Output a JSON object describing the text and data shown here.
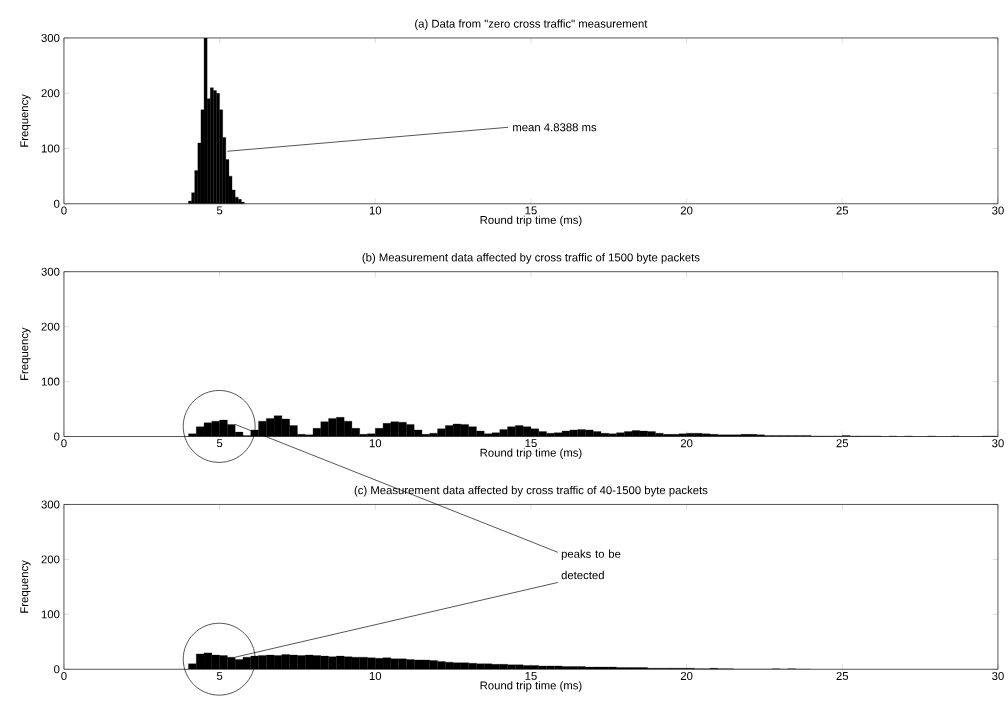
{
  "chart_data": [
    {
      "type": "histogram",
      "title": "(a)   Data from \"zero cross traffic\" measurement",
      "xlabel": "Round trip time (ms)",
      "ylabel": "Frequency",
      "color": "#000000",
      "bins": [
        4.0,
        4.1,
        4.2,
        4.3,
        4.4,
        4.5,
        4.6,
        4.7,
        4.8,
        4.9,
        5.0,
        5.1,
        5.2,
        5.3,
        5.4,
        5.5,
        5.6,
        5.7,
        5.8
      ],
      "values": [
        5,
        20,
        60,
        110,
        170,
        300,
        190,
        210,
        205,
        200,
        170,
        120,
        80,
        50,
        25,
        12,
        8,
        3
      ],
      "xlim": [
        0,
        30
      ],
      "ylim": [
        0,
        300
      ],
      "xticks": [
        0,
        5,
        10,
        15,
        20,
        25,
        30
      ],
      "yticks": [
        0,
        100,
        200,
        300
      ],
      "annotations": [
        {
          "text": "mean 4.8388 ms",
          "x": 5.25,
          "y": 95
        }
      ]
    },
    {
      "type": "histogram",
      "title": "(b)   Measurement data affected by cross traffic of 1500 byte packets",
      "xlabel": "Round trip time (ms)",
      "ylabel": "Frequency",
      "color": "#000000",
      "bins": [
        4,
        4.25,
        4.5,
        4.75,
        5,
        5.25,
        5.5,
        5.75,
        6,
        6.25,
        6.5,
        6.75,
        7,
        7.25,
        7.5,
        7.75,
        8,
        8.25,
        8.5,
        8.75,
        9,
        9.25,
        9.5,
        9.75,
        10,
        10.25,
        10.5,
        10.75,
        11,
        11.25,
        11.5,
        11.75,
        12,
        12.25,
        12.5,
        12.75,
        13,
        13.25,
        13.5,
        13.75,
        14,
        14.25,
        14.5,
        14.75,
        15,
        15.25,
        15.5,
        15.75,
        16,
        16.25,
        16.5,
        16.75,
        17,
        17.25,
        17.5,
        17.75,
        18,
        18.25,
        18.5,
        18.75,
        19,
        19.25,
        19.5,
        19.75,
        20,
        20.25,
        20.5,
        20.75,
        21,
        21.25,
        21.5,
        21.75,
        22,
        22.25,
        22.5,
        22.75,
        23,
        23.25,
        23.5,
        23.75,
        24,
        24.25,
        24.5,
        24.75,
        25,
        25.25,
        25.5,
        25.75,
        26,
        26.25,
        26.5,
        26.75,
        27,
        27.25,
        27.5,
        27.75,
        28,
        28.25,
        28.5,
        28.75,
        29,
        29.25,
        29.5,
        29.75,
        30
      ],
      "values": [
        5,
        18,
        25,
        28,
        30,
        22,
        8,
        2,
        12,
        28,
        33,
        38,
        32,
        20,
        4,
        3,
        15,
        27,
        33,
        35,
        28,
        15,
        4,
        5,
        15,
        24,
        27,
        26,
        22,
        12,
        4,
        6,
        14,
        20,
        23,
        22,
        18,
        10,
        5,
        7,
        13,
        18,
        20,
        18,
        14,
        9,
        6,
        7,
        10,
        12,
        13,
        12,
        9,
        6,
        5,
        7,
        9,
        11,
        10,
        9,
        6,
        4,
        4,
        5,
        6,
        6,
        5,
        4,
        3,
        3,
        3,
        4,
        4,
        3,
        2,
        2,
        2,
        2,
        2,
        2,
        1,
        1,
        1,
        1,
        2,
        1,
        1,
        1,
        1,
        0,
        1,
        0,
        1,
        0,
        0,
        1,
        0,
        0,
        1,
        0,
        0,
        0,
        1,
        1
      ],
      "xlim": [
        0,
        30
      ],
      "ylim": [
        0,
        300
      ],
      "xticks": [
        0,
        5,
        10,
        15,
        20,
        25,
        30
      ],
      "yticks": [
        0,
        100,
        200,
        300
      ]
    },
    {
      "type": "histogram",
      "title": "(c)   Measurement data affected by cross traffic of 40-1500 byte packets",
      "xlabel": "Round trip time (ms)",
      "ylabel": "Frequency",
      "color": "#000000",
      "bins": [
        4,
        4.25,
        4.5,
        4.75,
        5,
        5.25,
        5.5,
        5.75,
        6,
        6.25,
        6.5,
        6.75,
        7,
        7.25,
        7.5,
        7.75,
        8,
        8.25,
        8.5,
        8.75,
        9,
        9.25,
        9.5,
        9.75,
        10,
        10.25,
        10.5,
        10.75,
        11,
        11.25,
        11.5,
        11.75,
        12,
        12.25,
        12.5,
        12.75,
        13,
        13.25,
        13.5,
        13.75,
        14,
        14.25,
        14.5,
        14.75,
        15,
        15.25,
        15.5,
        15.75,
        16,
        16.25,
        16.5,
        16.75,
        17,
        17.25,
        17.5,
        17.75,
        18,
        18.25,
        18.5,
        18.75,
        19,
        19.25,
        19.5,
        19.75,
        20,
        20.25,
        20.5,
        20.75,
        21,
        21.25,
        21.5,
        21.75,
        22,
        22.25,
        22.5,
        22.75,
        23,
        23.25,
        23.5,
        23.75,
        24
      ],
      "values": [
        10,
        28,
        30,
        26,
        25,
        22,
        18,
        22,
        24,
        25,
        26,
        25,
        27,
        26,
        25,
        26,
        25,
        24,
        23,
        24,
        23,
        22,
        22,
        21,
        20,
        21,
        19,
        19,
        18,
        17,
        17,
        16,
        14,
        13,
        12,
        12,
        11,
        10,
        10,
        9,
        9,
        8,
        8,
        7,
        7,
        6,
        6,
        6,
        5,
        5,
        5,
        4,
        4,
        4,
        4,
        3,
        3,
        3,
        3,
        2,
        2,
        2,
        2,
        2,
        2,
        1,
        1,
        2,
        1,
        1,
        0,
        0,
        0,
        0,
        0,
        1,
        0,
        1,
        0,
        0
      ],
      "xlim": [
        0,
        30
      ],
      "ylim": [
        0,
        300
      ],
      "xticks": [
        0,
        5,
        10,
        15,
        20,
        25,
        30
      ],
      "yticks": [
        0,
        100,
        200,
        300
      ],
      "annotations": [
        {
          "text": "peaks to be detected",
          "x": 5.5,
          "y": 22
        }
      ]
    }
  ]
}
